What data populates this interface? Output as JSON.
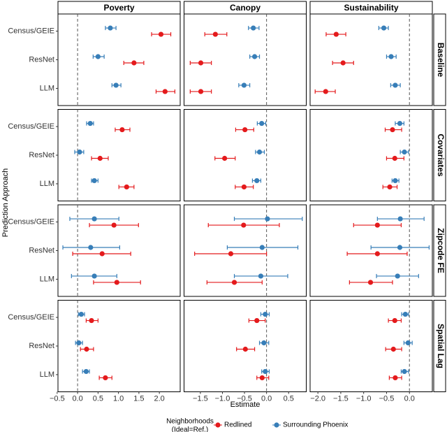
{
  "chart_data": {
    "type": "faceted-dot-errorbar",
    "x_label": "Estimate",
    "y_label": "Prediction Approach",
    "columns": [
      "Poverty",
      "Canopy",
      "Sustainability"
    ],
    "rows": [
      "Baseline",
      "Covariates",
      "Zipcode FE",
      "Spatial Lag"
    ],
    "categories": [
      "Census/GEIE",
      "ResNet",
      "LLM"
    ],
    "reference_line": 0,
    "xlims": [
      [
        -0.48,
        2.51
      ],
      [
        -1.87,
        0.9
      ],
      [
        -2.17,
        0.5
      ]
    ],
    "xticks": [
      [
        {
          "value": -0.5,
          "label": "−0.5"
        },
        {
          "value": 0,
          "label": "0.0"
        },
        {
          "value": 0.5,
          "label": "0.5"
        },
        {
          "value": 1,
          "label": "1.0"
        },
        {
          "value": 1.5,
          "label": "1.5"
        },
        {
          "value": 2,
          "label": "2.0"
        }
      ],
      [
        {
          "value": -1.5,
          "label": "−1.5"
        },
        {
          "value": -1,
          "label": "−1.0"
        },
        {
          "value": -0.5,
          "label": "−0.5"
        },
        {
          "value": 0,
          "label": "0.0"
        },
        {
          "value": 0.5,
          "label": "0.5"
        }
      ],
      [
        {
          "value": -2,
          "label": "−2.0"
        },
        {
          "value": -1.5,
          "label": "−1.5"
        },
        {
          "value": -1,
          "label": "−1.0"
        },
        {
          "value": -0.5,
          "label": "−0.5"
        },
        {
          "value": 0,
          "label": "0.0"
        }
      ]
    ],
    "legend_title": [
      "Neighborhoods",
      "(Ideal=Ref.)"
    ],
    "series": [
      {
        "name": "Redlined",
        "color": "#e41a1c",
        "values": [
          [
            [
              2.04,
              1.38,
              2.14
            ],
            [
              -1.16,
              -1.49,
              -1.49
            ],
            [
              -1.6,
              -1.45,
              -1.83
            ]
          ],
          [
            [
              1.09,
              0.55,
              1.2
            ],
            [
              -0.49,
              -0.95,
              -0.51
            ],
            [
              -0.37,
              -0.32,
              -0.43
            ]
          ],
          [
            [
              0.89,
              0.6,
              0.96
            ],
            [
              -0.52,
              -0.81,
              -0.73
            ],
            [
              -0.7,
              -0.7,
              -0.85
            ]
          ],
          [
            [
              0.34,
              0.22,
              0.68
            ],
            [
              -0.22,
              -0.48,
              -0.1
            ],
            [
              -0.32,
              -0.35,
              -0.31
            ]
          ]
        ],
        "lower": [
          [
            [
              1.81,
              1.13,
              1.92
            ],
            [
              -1.4,
              -1.73,
              -1.73
            ],
            [
              -1.82,
              -1.68,
              -2.06
            ]
          ],
          [
            [
              0.92,
              0.34,
              1.01
            ],
            [
              -0.7,
              -1.17,
              -0.71
            ],
            [
              -0.53,
              -0.5,
              -0.58
            ]
          ],
          [
            [
              0.29,
              -0.12,
              0.39
            ],
            [
              -1.32,
              -1.63,
              -1.35
            ],
            [
              -1.22,
              -1.36,
              -1.31
            ]
          ],
          [
            [
              0.21,
              0.07,
              0.53
            ],
            [
              -0.4,
              -0.68,
              -0.22
            ],
            [
              -0.46,
              -0.52,
              -0.44
            ]
          ]
        ],
        "upper": [
          [
            [
              2.28,
              1.62,
              2.38
            ],
            [
              -0.9,
              -1.25,
              -1.25
            ],
            [
              -1.39,
              -1.22,
              -1.62
            ]
          ],
          [
            [
              1.28,
              0.75,
              1.38
            ],
            [
              -0.29,
              -0.71,
              -0.3
            ],
            [
              -0.17,
              -0.12,
              -0.27
            ]
          ],
          [
            [
              1.49,
              1.3,
              1.54
            ],
            [
              0.29,
              0,
              -0.1
            ],
            [
              -0.18,
              -0.05,
              -0.37
            ]
          ],
          [
            [
              0.5,
              0.39,
              0.84
            ],
            [
              -0.03,
              -0.27,
              0.05
            ],
            [
              -0.18,
              -0.17,
              -0.17
            ]
          ]
        ]
      },
      {
        "name": "Surrounding Phoenix",
        "color": "#377eb8",
        "values": [
          [
            [
              0.8,
              0.5,
              0.94
            ],
            [
              -0.3,
              -0.27,
              -0.51
            ],
            [
              -0.56,
              -0.4,
              -0.31
            ]
          ],
          [
            [
              0.31,
              0.05,
              0.41
            ],
            [
              -0.11,
              -0.16,
              -0.22
            ],
            [
              -0.21,
              -0.11,
              -0.31
            ]
          ],
          [
            [
              0.41,
              0.32,
              0.41
            ],
            [
              0.02,
              -0.1,
              -0.13
            ],
            [
              -0.2,
              -0.21,
              -0.26
            ]
          ],
          [
            [
              0.09,
              0.03,
              0.21
            ],
            [
              -0.03,
              -0.06,
              -0.03
            ],
            [
              -0.09,
              -0.03,
              -0.11
            ]
          ]
        ],
        "lower": [
          [
            [
              0.68,
              0.38,
              0.84
            ],
            [
              -0.41,
              -0.38,
              -0.63
            ],
            [
              -0.67,
              -0.5,
              -0.41
            ]
          ],
          [
            [
              0.22,
              -0.07,
              0.34
            ],
            [
              -0.21,
              -0.25,
              -0.32
            ],
            [
              -0.31,
              -0.2,
              -0.38
            ]
          ],
          [
            [
              -0.19,
              -0.36,
              -0.15
            ],
            [
              -0.73,
              -0.89,
              -0.73
            ],
            [
              -0.7,
              -0.84,
              -0.72
            ]
          ],
          [
            [
              0.02,
              -0.05,
              0.12
            ],
            [
              -0.13,
              -0.16,
              -0.11
            ],
            [
              -0.17,
              -0.12,
              -0.18
            ]
          ]
        ],
        "upper": [
          [
            [
              0.94,
              0.65,
              1.06
            ],
            [
              -0.17,
              -0.16,
              -0.38
            ],
            [
              -0.46,
              -0.29,
              -0.2
            ]
          ],
          [
            [
              0.39,
              0.15,
              0.5
            ],
            [
              -0.02,
              -0.05,
              -0.13
            ],
            [
              -0.12,
              -0.02,
              -0.23
            ]
          ],
          [
            [
              1.01,
              1.03,
              0.96
            ],
            [
              0.81,
              0.71,
              0.48
            ],
            [
              0.32,
              0.43,
              0.2
            ]
          ],
          [
            [
              0.17,
              0.12,
              0.29
            ],
            [
              0.06,
              0.05,
              0.06
            ],
            [
              -0.02,
              0.06,
              -0.02
            ]
          ]
        ]
      }
    ]
  }
}
